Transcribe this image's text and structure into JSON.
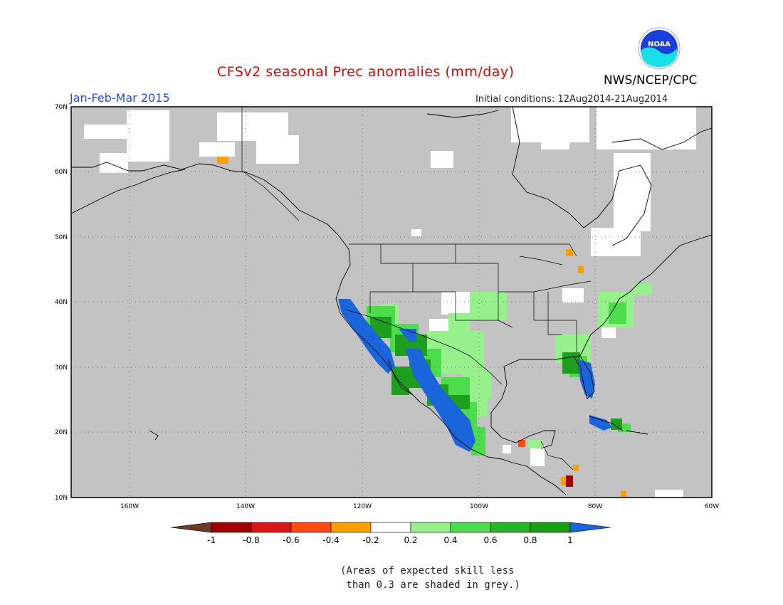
{
  "header": {
    "title": "CFSv2 seasonal Prec anomalies (mm/day)",
    "season": "Jan-Feb-Mar 2015",
    "initial_conditions": "Initial conditions: 12Aug2014-21Aug2014",
    "agency": "NWS/NCEP/CPC",
    "logo_text": "NOAA"
  },
  "map": {
    "lat_labels": [
      "70N",
      "60N",
      "50N",
      "40N",
      "30N",
      "20N",
      "10N"
    ],
    "lon_labels": [
      "160W",
      "140W",
      "120W",
      "100W",
      "80W",
      "60W"
    ],
    "lat_range": [
      10,
      70
    ],
    "lon_range": [
      -170,
      -60
    ],
    "grid": "dotted",
    "background_color": "#c0c0c0"
  },
  "colorbar": {
    "tick_labels": [
      "-1",
      "-0.8",
      "-0.6",
      "-0.4",
      "-0.2",
      "0.2",
      "0.4",
      "0.6",
      "0.8",
      "1"
    ],
    "colors": [
      "#6b3a28",
      "#a00000",
      "#d81818",
      "#ff4a10",
      "#ff9e00",
      "#ffffff",
      "#96f08c",
      "#4cdc4c",
      "#28b428",
      "#14a014",
      "#1a64dc"
    ]
  },
  "note": {
    "line1": "(Areas of expected skill less",
    "line2": " than 0.3 are shaded in grey.)"
  }
}
